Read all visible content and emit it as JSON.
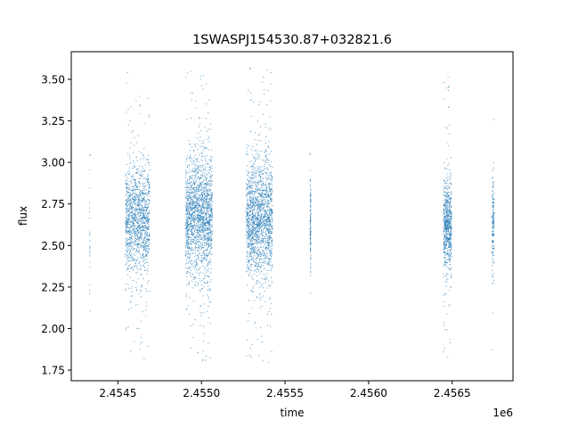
{
  "chart_data": {
    "type": "scatter",
    "title": "1SWASPJ154530.87+032821.6",
    "xlabel": "time",
    "ylabel": "flux",
    "x_offset_label": "1e6",
    "xlim": [
      2454221,
      2456864
    ],
    "ylim": [
      1.686,
      3.666
    ],
    "x_ticks": [
      2454500,
      2455000,
      2455500,
      2456000,
      2456500
    ],
    "x_tick_labels": [
      "2.4545",
      "2.4550",
      "2.4555",
      "2.4560",
      "2.4565"
    ],
    "y_ticks": [
      1.75,
      2.0,
      2.25,
      2.5,
      2.75,
      3.0,
      3.25,
      3.5
    ],
    "y_tick_labels": [
      "1.75",
      "2.00",
      "2.25",
      "2.50",
      "2.75",
      "3.00",
      "3.25",
      "3.50"
    ],
    "grid": false,
    "legend": "none",
    "marker_color": "#1f77b4",
    "clusters": [
      {
        "time_range": [
          2454330,
          2454334
        ],
        "flux_center": 2.6,
        "flux_sd": 0.25,
        "flux_range": [
          2.0,
          3.05
        ],
        "n": 30
      },
      {
        "time_range": [
          2454545,
          2454690
        ],
        "flux_center": 2.66,
        "flux_sd": 0.13,
        "flux_range": [
          1.79,
          3.55
        ],
        "n": 1300
      },
      {
        "time_range": [
          2454905,
          2455065
        ],
        "flux_center": 2.68,
        "flux_sd": 0.14,
        "flux_range": [
          1.78,
          3.57
        ],
        "n": 1800
      },
      {
        "time_range": [
          2455268,
          2455425
        ],
        "flux_center": 2.66,
        "flux_sd": 0.14,
        "flux_range": [
          1.78,
          3.57
        ],
        "n": 1700
      },
      {
        "time_range": [
          2455650,
          2455655
        ],
        "flux_center": 2.66,
        "flux_sd": 0.12,
        "flux_range": [
          2.19,
          3.44
        ],
        "n": 120
      },
      {
        "time_range": [
          2456448,
          2456497
        ],
        "flux_center": 2.62,
        "flux_sd": 0.11,
        "flux_range": [
          1.8,
          3.54
        ],
        "n": 700
      },
      {
        "time_range": [
          2456738,
          2456752
        ],
        "flux_center": 2.62,
        "flux_sd": 0.1,
        "flux_range": [
          1.8,
          3.28
        ],
        "n": 160
      }
    ]
  }
}
